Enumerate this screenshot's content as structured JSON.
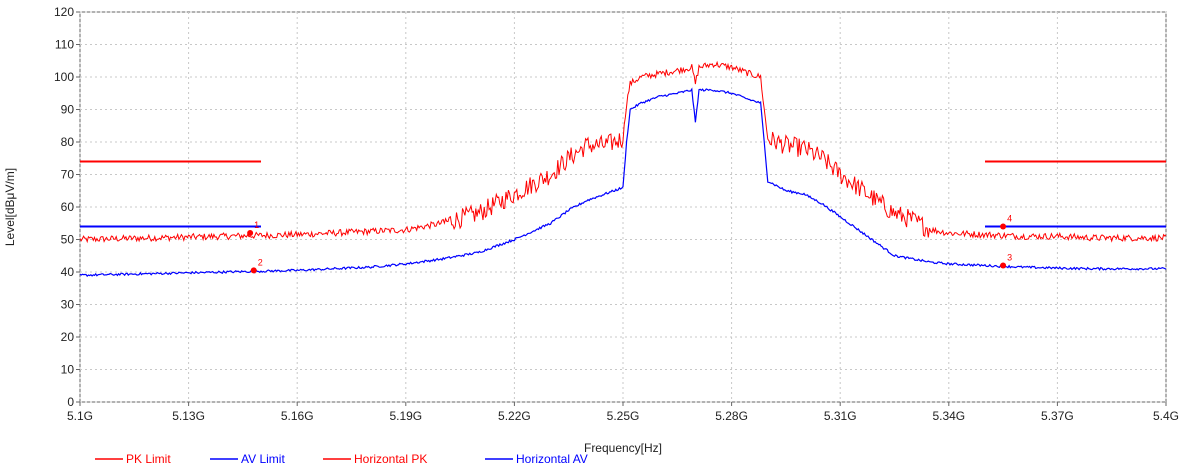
{
  "chart_data": {
    "type": "line",
    "xlabel": "Frequency[Hz]",
    "ylabel": "Level[dBμV/m]",
    "xlim": [
      5.1,
      5.4
    ],
    "ylim": [
      0,
      120
    ],
    "x_unit_suffix": "G",
    "x_ticks": [
      5.1,
      5.13,
      5.16,
      5.19,
      5.22,
      5.25,
      5.28,
      5.31,
      5.34,
      5.37,
      5.4
    ],
    "x_tick_labels": [
      "5.1G",
      "5.13G",
      "5.16G",
      "5.19G",
      "5.22G",
      "5.25G",
      "5.28G",
      "5.31G",
      "5.34G",
      "5.37G",
      "5.4G"
    ],
    "y_ticks": [
      0,
      10,
      20,
      30,
      40,
      50,
      60,
      70,
      80,
      90,
      100,
      110,
      120
    ],
    "y_tick_labels": [
      "0",
      "10",
      "20",
      "30",
      "40",
      "50",
      "60",
      "70",
      "80",
      "90",
      "100",
      "110",
      "120"
    ],
    "grid": true,
    "legend_position": "bottom",
    "series": [
      {
        "name": "PK Limit",
        "color": "#ff0000",
        "style": "limit",
        "segments": [
          {
            "x": [
              5.1,
              5.15
            ],
            "y": [
              74,
              74
            ]
          },
          {
            "x": [
              5.35,
              5.4
            ],
            "y": [
              74,
              74
            ]
          }
        ]
      },
      {
        "name": "AV Limit",
        "color": "#0000ff",
        "style": "limit",
        "segments": [
          {
            "x": [
              5.1,
              5.15
            ],
            "y": [
              54,
              54
            ]
          },
          {
            "x": [
              5.35,
              5.4
            ],
            "y": [
              54,
              54
            ]
          }
        ]
      },
      {
        "name": "Horizontal PK",
        "color": "#ff0000",
        "style": "trace",
        "x": [
          5.1,
          5.12,
          5.14,
          5.16,
          5.17,
          5.18,
          5.19,
          5.2,
          5.21,
          5.22,
          5.23,
          5.235,
          5.24,
          5.245,
          5.25,
          5.251,
          5.252,
          5.255,
          5.26,
          5.265,
          5.269,
          5.27,
          5.271,
          5.275,
          5.28,
          5.285,
          5.288,
          5.289,
          5.29,
          5.295,
          5.3,
          5.305,
          5.31,
          5.315,
          5.32,
          5.325,
          5.33,
          5.335,
          5.34,
          5.35,
          5.36,
          5.37,
          5.38,
          5.4
        ],
        "y": [
          50,
          50.5,
          51,
          51.5,
          52,
          52.5,
          53,
          55,
          58,
          64,
          70,
          75,
          79,
          79,
          81,
          92,
          98,
          100,
          101,
          102,
          103,
          98,
          103,
          104,
          103,
          101,
          100,
          90,
          81,
          79,
          78,
          75,
          70,
          66,
          62,
          58,
          56,
          53,
          52,
          51.5,
          51,
          51,
          50.5,
          50.5
        ]
      },
      {
        "name": "Horizontal AV",
        "color": "#0000ff",
        "style": "trace",
        "x": [
          5.1,
          5.12,
          5.14,
          5.16,
          5.17,
          5.18,
          5.19,
          5.2,
          5.21,
          5.22,
          5.23,
          5.235,
          5.24,
          5.245,
          5.25,
          5.251,
          5.252,
          5.255,
          5.26,
          5.265,
          5.269,
          5.27,
          5.271,
          5.275,
          5.28,
          5.285,
          5.288,
          5.289,
          5.29,
          5.295,
          5.3,
          5.305,
          5.31,
          5.315,
          5.32,
          5.325,
          5.33,
          5.335,
          5.34,
          5.35,
          5.36,
          5.37,
          5.38,
          5.4
        ],
        "y": [
          39,
          39.5,
          40,
          40.5,
          41,
          41.5,
          42.5,
          44,
          46,
          50,
          55,
          59,
          62,
          64,
          66,
          80,
          90,
          92,
          94,
          95,
          96,
          86,
          96,
          96,
          95,
          93,
          92,
          80,
          68,
          65,
          64,
          61,
          57,
          53,
          49,
          45,
          44,
          43,
          42.5,
          42,
          41.5,
          41.2,
          41,
          41
        ]
      }
    ],
    "markers": [
      {
        "label": "1",
        "x": 5.147,
        "y": 52,
        "color": "#ff0000"
      },
      {
        "label": "2",
        "x": 5.148,
        "y": 40.5,
        "color": "#ff0000"
      },
      {
        "label": "3",
        "x": 5.355,
        "y": 42,
        "color": "#ff0000"
      },
      {
        "label": "4",
        "x": 5.355,
        "y": 54,
        "color": "#ff0000"
      }
    ]
  }
}
